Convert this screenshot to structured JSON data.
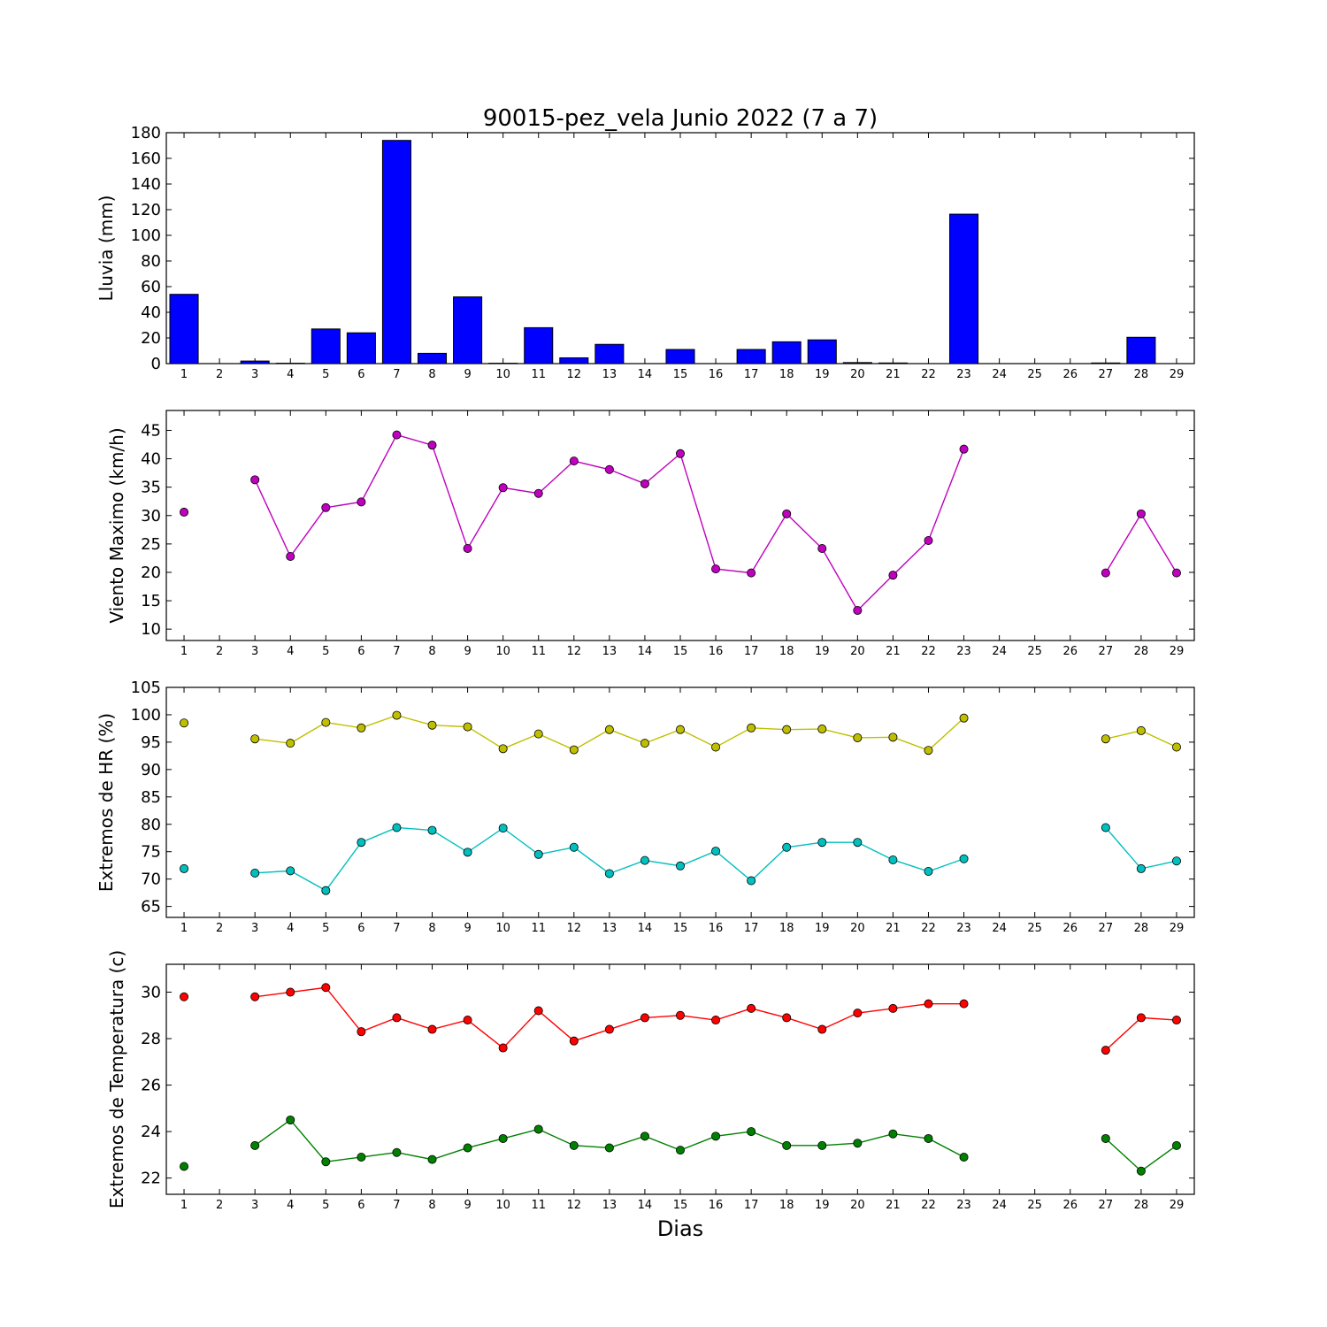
{
  "title": "90015-pez_vela Junio 2022  (7 a 7)",
  "xlabel": "Dias",
  "colors": {
    "rain": "#0000ff",
    "wind": "#bf00bf",
    "hr_max": "#bfbf00",
    "hr_min": "#00bfbf",
    "t_max": "#ff0000",
    "t_min": "#008000"
  },
  "chart_data": [
    {
      "type": "bar",
      "ylabel": "Lluvia (mm)",
      "ylim": [
        0,
        180
      ],
      "yticks": [
        0,
        20,
        40,
        60,
        80,
        100,
        120,
        140,
        160,
        180
      ],
      "xlim": [
        0.5,
        29.5
      ],
      "categories": [
        1,
        2,
        3,
        4,
        5,
        6,
        7,
        8,
        9,
        10,
        11,
        12,
        13,
        14,
        15,
        16,
        17,
        18,
        19,
        20,
        21,
        22,
        23,
        24,
        25,
        26,
        27,
        28,
        29
      ],
      "series": [
        {
          "color": "rain",
          "values": [
            54,
            0,
            2,
            0.3,
            27,
            24,
            174,
            8,
            52,
            0.3,
            28,
            4.5,
            15,
            0,
            11,
            0,
            11,
            17,
            18.5,
            0.8,
            0.5,
            0,
            116.5,
            0,
            0,
            0,
            0.5,
            20.5,
            0
          ]
        }
      ]
    },
    {
      "type": "line",
      "ylabel": "Viento Maximo (km/h)",
      "ylim": [
        8,
        48.5
      ],
      "yticks": [
        10,
        15,
        20,
        25,
        30,
        35,
        40,
        45
      ],
      "xlim": [
        0.5,
        29.5
      ],
      "x": [
        1,
        2,
        3,
        4,
        5,
        6,
        7,
        8,
        9,
        10,
        11,
        12,
        13,
        14,
        15,
        16,
        17,
        18,
        19,
        20,
        21,
        22,
        23,
        24,
        25,
        26,
        27,
        28,
        29
      ],
      "series": [
        {
          "color": "wind",
          "values": [
            30.6,
            null,
            36.3,
            22.8,
            31.4,
            32.4,
            44.2,
            42.4,
            24.2,
            34.9,
            33.9,
            39.6,
            38.1,
            35.6,
            40.9,
            20.6,
            19.9,
            30.3,
            24.2,
            13.3,
            19.5,
            25.6,
            41.7,
            null,
            null,
            null,
            19.9,
            30.3,
            19.9
          ]
        }
      ]
    },
    {
      "type": "line",
      "ylabel": "Extremos de HR (%)",
      "ylim": [
        63,
        105
      ],
      "yticks": [
        65,
        70,
        75,
        80,
        85,
        90,
        95,
        100,
        105
      ],
      "xlim": [
        0.5,
        29.5
      ],
      "x": [
        1,
        2,
        3,
        4,
        5,
        6,
        7,
        8,
        9,
        10,
        11,
        12,
        13,
        14,
        15,
        16,
        17,
        18,
        19,
        20,
        21,
        22,
        23,
        24,
        25,
        26,
        27,
        28,
        29
      ],
      "series": [
        {
          "color": "hr_max",
          "values": [
            98.5,
            null,
            95.6,
            94.8,
            98.6,
            97.6,
            99.9,
            98.1,
            97.8,
            93.8,
            96.5,
            93.6,
            97.3,
            94.8,
            97.3,
            94.1,
            97.6,
            97.3,
            97.4,
            95.8,
            95.9,
            93.5,
            99.4,
            null,
            null,
            null,
            95.6,
            97.1,
            94.1
          ]
        },
        {
          "color": "hr_min",
          "values": [
            71.9,
            null,
            71.1,
            71.5,
            67.9,
            76.7,
            79.4,
            78.9,
            74.9,
            79.3,
            74.5,
            75.8,
            71.0,
            73.4,
            72.4,
            75.1,
            69.7,
            75.8,
            76.7,
            76.7,
            73.5,
            71.4,
            73.7,
            null,
            null,
            null,
            79.4,
            71.9,
            73.3
          ]
        }
      ]
    },
    {
      "type": "line",
      "ylabel": "Extremos de Temperatura (c)",
      "ylim": [
        21.3,
        31.2
      ],
      "yticks": [
        22,
        24,
        26,
        28,
        30
      ],
      "xlim": [
        0.5,
        29.5
      ],
      "x": [
        1,
        2,
        3,
        4,
        5,
        6,
        7,
        8,
        9,
        10,
        11,
        12,
        13,
        14,
        15,
        16,
        17,
        18,
        19,
        20,
        21,
        22,
        23,
        24,
        25,
        26,
        27,
        28,
        29
      ],
      "series": [
        {
          "color": "t_max",
          "values": [
            29.8,
            null,
            29.8,
            30.0,
            30.2,
            28.3,
            28.9,
            28.4,
            28.8,
            27.6,
            29.2,
            27.9,
            28.4,
            28.9,
            29.0,
            28.8,
            29.3,
            28.9,
            28.4,
            29.1,
            29.3,
            29.5,
            29.5,
            null,
            null,
            null,
            27.5,
            28.9,
            28.8
          ]
        },
        {
          "color": "t_min",
          "values": [
            22.5,
            null,
            23.4,
            24.5,
            22.7,
            22.9,
            23.1,
            22.8,
            23.3,
            23.7,
            24.1,
            23.4,
            23.3,
            23.8,
            23.2,
            23.8,
            24.0,
            23.4,
            23.4,
            23.5,
            23.9,
            23.7,
            22.9,
            null,
            null,
            null,
            23.7,
            22.3,
            23.4
          ]
        }
      ]
    }
  ]
}
